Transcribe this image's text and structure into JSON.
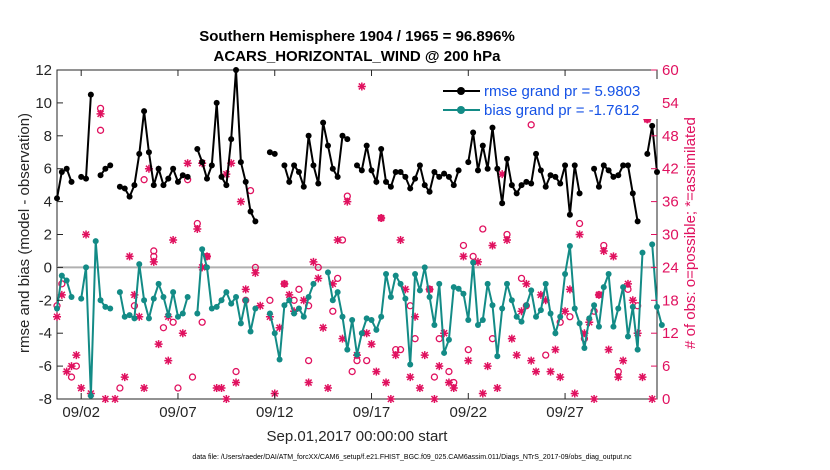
{
  "chart_data": {
    "type": "line",
    "title": "Southern Hemisphere 1904 / 1965 = 96.896%",
    "subtitle": "ACARS_HORIZONTAL_WIND @ 200 hPa",
    "xlabel": "Sep.01,2017 00:00:00 start",
    "ylabel": "rmse and bias (model - observation)",
    "y2label": "# of obs: o=possible; *=assimilated",
    "footer": "data file: /Users/raeder/DAI/ATM_forcXX/CAM6_setup/f.e21.FHIST_BGC.f09_025.CAM6assim.011/Diags_NTrS_2017-09/obs_diag_output.nc",
    "xlim": [
      0,
      124
    ],
    "ylim": [
      -8,
      12
    ],
    "y2lim": [
      0,
      60
    ],
    "x_tick_positions": [
      5,
      25,
      45,
      65,
      85,
      105
    ],
    "x_tick_labels": [
      "09/02",
      "09/07",
      "09/12",
      "09/17",
      "09/22",
      "09/27"
    ],
    "y_ticks": [
      -8,
      -6,
      -4,
      -2,
      0,
      2,
      4,
      6,
      8,
      10,
      12
    ],
    "y2_ticks": [
      0,
      6,
      12,
      18,
      24,
      30,
      36,
      42,
      48,
      54,
      60
    ],
    "zero_line": 0,
    "legend_position": "top-right",
    "colors": {
      "rmse": "#000000",
      "bias": "#138b86",
      "obs": "#e0115f",
      "legend_text": "#1552e6",
      "zero": "#b0b0b0"
    },
    "series": [
      {
        "name": "rmse grand pr = 5.9803",
        "values": [
          4.2,
          5.8,
          6.0,
          5.2,
          null,
          5.5,
          5.4,
          10.5,
          null,
          5.6,
          6.0,
          6.2,
          null,
          4.9,
          4.8,
          4.3,
          5.0,
          6.9,
          9.5,
          7.0,
          5.0,
          6.0,
          5.0,
          5.4,
          6.0,
          5.2,
          5.6,
          5.5,
          null,
          7.2,
          6.4,
          5.4,
          6.2,
          10.0,
          5.5,
          5.0,
          7.8,
          12.0,
          6.4,
          5.2,
          3.4,
          2.8,
          null,
          null,
          7.0,
          6.9,
          null,
          6.2,
          5.2,
          6.2,
          5.8,
          4.9,
          8.0,
          6.2,
          5.1,
          8.8,
          7.4,
          6.0,
          5.5,
          8.0,
          7.8,
          null,
          6.2,
          5.9,
          7.4,
          5.9,
          5.2,
          7.2,
          5.2,
          4.9,
          5.8,
          5.8,
          5.5,
          4.8,
          5.4,
          6.2,
          5.0,
          4.6,
          5.8,
          5.5,
          5.7,
          5.5,
          5.0,
          5.9,
          null,
          6.4,
          8.2,
          5.9,
          7.4,
          6.0,
          8.5,
          6.0,
          3.9,
          6.6,
          5.0,
          4.5,
          5.0,
          5.2,
          5.1,
          6.9,
          5.9,
          4.9,
          5.6,
          5.5,
          5.1,
          6.2,
          3.2,
          6.2,
          4.5,
          null,
          null,
          6.0,
          4.9,
          6.2,
          5.9,
          5.5,
          5.6,
          6.2,
          6.2,
          4.5,
          2.8,
          null,
          6.9,
          8.6,
          5.8
        ]
      },
      {
        "name": "bias grand pr = -1.7612",
        "values": [
          -2.5,
          -0.5,
          -0.8,
          -1.8,
          null,
          -1.9,
          0.0,
          -7.8,
          1.6,
          -2.0,
          -2.4,
          -2.5,
          null,
          -1.5,
          -3.0,
          -2.9,
          -3.1,
          0.2,
          -2.0,
          -3.1,
          -1.9,
          -1.0,
          -1.8,
          -2.9,
          -1.5,
          -3.0,
          -2.8,
          -1.8,
          null,
          -2.8,
          1.1,
          0.0,
          -2.5,
          -2.4,
          -2.0,
          -1.5,
          -2.2,
          -1.8,
          -3.4,
          -2.0,
          -3.9,
          -2.5,
          null,
          null,
          -2.8,
          -4.0,
          -5.6,
          -2.3,
          -2.0,
          -2.8,
          -2.5,
          -3.0,
          -1.8,
          -1.0,
          null,
          null,
          -0.3,
          -2.0,
          -1.5,
          -3.0,
          -5.0,
          -3.2,
          -5.3,
          -4.0,
          -3.1,
          -3.2,
          -3.8,
          -3.0,
          -0.4,
          -1.8,
          -0.5,
          -1.0,
          -1.9,
          -5.9,
          -0.4,
          -1.4,
          0.0,
          -1.8,
          -3.5,
          -1.0,
          -5.2,
          -4.4,
          -1.2,
          -1.3,
          -1.6,
          -3.2,
          0.3,
          -3.5,
          -3.2,
          -1.0,
          -2.3,
          -5.4,
          -2.5,
          -1.0,
          -2.0,
          -3.0,
          -3.3,
          -2.3,
          -1.4,
          -3.0,
          -2.6,
          -1.0,
          -2.8,
          -4.0,
          -3.0,
          -0.4,
          1.3,
          -2.5,
          -3.4,
          -4.9,
          -3.1,
          -2.3,
          -3.6,
          -1.2,
          -0.4,
          -3.6,
          -2.5,
          -1.2,
          -4.2,
          -2.4,
          -5.0,
          0.9,
          null,
          1.4,
          -2.4,
          -3.5
        ]
      }
    ],
    "obs_possible": [
      [
        0,
        17
      ],
      [
        1,
        21
      ],
      [
        3,
        4
      ],
      [
        4,
        6
      ],
      [
        9,
        49
      ],
      [
        9,
        53
      ],
      [
        13,
        2
      ],
      [
        16,
        17
      ],
      [
        18,
        40
      ],
      [
        20,
        26
      ],
      [
        20,
        27
      ],
      [
        22,
        13
      ],
      [
        24,
        14
      ],
      [
        25,
        2
      ],
      [
        27,
        40
      ],
      [
        28,
        4
      ],
      [
        29,
        32
      ],
      [
        30,
        14
      ],
      [
        31,
        26
      ],
      [
        37,
        5
      ],
      [
        39,
        18
      ],
      [
        40,
        38
      ],
      [
        41,
        24
      ],
      [
        44,
        18
      ],
      [
        47,
        21
      ],
      [
        49,
        18
      ],
      [
        50,
        20
      ],
      [
        52,
        7
      ],
      [
        52,
        17
      ],
      [
        54,
        24
      ],
      [
        57,
        16
      ],
      [
        58,
        22
      ],
      [
        59,
        29
      ],
      [
        60,
        37
      ],
      [
        61,
        5
      ],
      [
        62,
        7
      ],
      [
        64,
        7
      ],
      [
        67,
        33
      ],
      [
        70,
        9
      ],
      [
        71,
        9
      ],
      [
        73,
        17
      ],
      [
        74,
        11
      ],
      [
        77,
        20
      ],
      [
        78,
        4
      ],
      [
        79,
        11
      ],
      [
        81,
        5
      ],
      [
        82,
        3
      ],
      [
        84,
        28
      ],
      [
        85,
        9
      ],
      [
        86,
        26
      ],
      [
        88,
        31
      ],
      [
        90,
        11
      ],
      [
        93,
        30
      ],
      [
        96,
        22
      ],
      [
        97,
        17
      ],
      [
        98,
        50
      ],
      [
        101,
        8
      ],
      [
        104,
        14
      ],
      [
        106,
        15
      ],
      [
        108,
        32
      ],
      [
        109,
        11
      ],
      [
        111,
        16
      ],
      [
        112,
        19
      ],
      [
        113,
        28
      ],
      [
        116,
        5
      ],
      [
        118,
        20
      ],
      [
        120,
        17
      ],
      [
        122,
        51
      ]
    ],
    "obs_assimilated": [
      [
        0,
        15
      ],
      [
        1,
        19
      ],
      [
        2,
        5
      ],
      [
        3,
        6
      ],
      [
        4,
        8
      ],
      [
        5,
        2
      ],
      [
        6,
        30
      ],
      [
        7,
        1
      ],
      [
        9,
        52
      ],
      [
        10,
        0
      ],
      [
        12,
        0
      ],
      [
        14,
        4
      ],
      [
        15,
        26
      ],
      [
        16,
        19
      ],
      [
        17,
        15
      ],
      [
        18,
        2
      ],
      [
        19,
        42
      ],
      [
        20,
        25
      ],
      [
        21,
        10
      ],
      [
        23,
        15
      ],
      [
        23,
        7
      ],
      [
        24,
        29
      ],
      [
        26,
        12
      ],
      [
        27,
        43
      ],
      [
        29,
        31
      ],
      [
        30,
        43
      ],
      [
        30,
        24
      ],
      [
        31,
        26
      ],
      [
        33,
        2
      ],
      [
        34,
        2
      ],
      [
        35,
        0
      ],
      [
        35,
        41
      ],
      [
        36,
        43
      ],
      [
        37,
        3
      ],
      [
        38,
        36
      ],
      [
        39,
        20
      ],
      [
        41,
        23
      ],
      [
        42,
        17
      ],
      [
        44,
        15
      ],
      [
        45,
        1
      ],
      [
        46,
        13
      ],
      [
        47,
        21
      ],
      [
        48,
        19
      ],
      [
        49,
        16
      ],
      [
        51,
        18
      ],
      [
        52,
        3
      ],
      [
        53,
        25
      ],
      [
        54,
        22
      ],
      [
        55,
        13
      ],
      [
        56,
        2
      ],
      [
        57,
        21
      ],
      [
        58,
        29
      ],
      [
        59,
        11
      ],
      [
        60,
        36
      ],
      [
        62,
        8
      ],
      [
        63,
        57
      ],
      [
        64,
        12
      ],
      [
        65,
        10
      ],
      [
        66,
        5
      ],
      [
        67,
        33
      ],
      [
        68,
        3
      ],
      [
        69,
        0
      ],
      [
        70,
        8
      ],
      [
        71,
        29
      ],
      [
        72,
        20
      ],
      [
        73,
        4
      ],
      [
        74,
        15
      ],
      [
        75,
        2
      ],
      [
        76,
        8
      ],
      [
        77,
        20
      ],
      [
        78,
        0
      ],
      [
        79,
        6
      ],
      [
        80,
        12
      ],
      [
        81,
        3
      ],
      [
        82,
        2
      ],
      [
        84,
        26
      ],
      [
        85,
        7
      ],
      [
        87,
        25
      ],
      [
        88,
        1
      ],
      [
        89,
        6
      ],
      [
        90,
        28
      ],
      [
        91,
        2
      ],
      [
        92,
        41
      ],
      [
        93,
        29
      ],
      [
        94,
        11
      ],
      [
        95,
        8
      ],
      [
        96,
        16
      ],
      [
        97,
        21
      ],
      [
        98,
        7
      ],
      [
        99,
        5
      ],
      [
        100,
        19
      ],
      [
        101,
        18
      ],
      [
        102,
        5
      ],
      [
        103,
        9
      ],
      [
        104,
        4
      ],
      [
        105,
        16
      ],
      [
        106,
        20
      ],
      [
        107,
        1
      ],
      [
        108,
        30
      ],
      [
        109,
        12
      ],
      [
        110,
        14
      ],
      [
        111,
        0
      ],
      [
        112,
        19
      ],
      [
        113,
        27
      ],
      [
        114,
        9
      ],
      [
        115,
        26
      ],
      [
        116,
        4
      ],
      [
        117,
        7
      ],
      [
        118,
        21
      ],
      [
        119,
        18
      ],
      [
        120,
        12
      ],
      [
        121,
        4
      ],
      [
        122,
        51
      ],
      [
        123,
        0
      ]
    ]
  }
}
